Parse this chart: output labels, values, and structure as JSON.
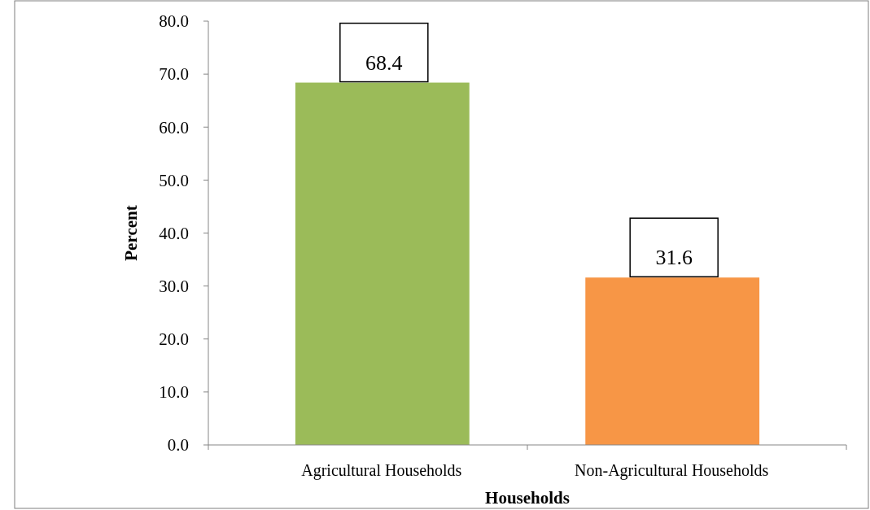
{
  "chart_data": {
    "type": "bar",
    "xlabel": "Households",
    "ylabel": "Percent",
    "categories": [
      "Agricultural Households",
      "Non-Agricultural Households"
    ],
    "values": [
      68.4,
      31.6
    ],
    "colors": [
      "#9bbb59",
      "#f79646"
    ],
    "ylim": [
      0,
      80
    ],
    "yticks": [
      {
        "value": 0,
        "label": "0.0"
      },
      {
        "value": 10,
        "label": "10.0"
      },
      {
        "value": 20,
        "label": "20.0"
      },
      {
        "value": 30,
        "label": "30.0"
      },
      {
        "value": 40,
        "label": "40.0"
      },
      {
        "value": 50,
        "label": "50.0"
      },
      {
        "value": 60,
        "label": "60.0"
      },
      {
        "value": 70,
        "label": "70.0"
      },
      {
        "value": 80,
        "label": "80.0"
      }
    ],
    "data_labels": true
  }
}
